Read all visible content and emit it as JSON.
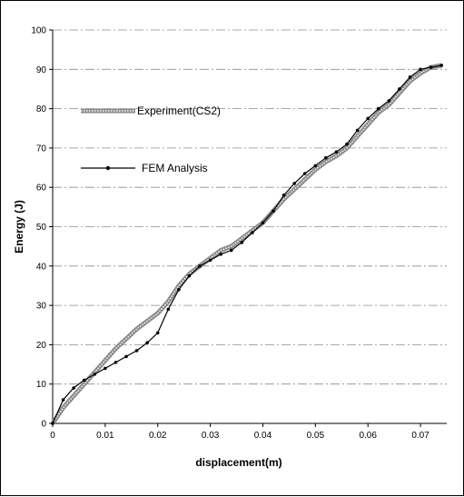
{
  "chart_data": {
    "type": "line",
    "title": "",
    "xlabel": "displacement(m)",
    "ylabel": "Energy (J)",
    "xlim": [
      0,
      0.075
    ],
    "ylim": [
      0,
      100
    ],
    "xticks": [
      0,
      0.01,
      0.02,
      0.03,
      0.04,
      0.05,
      0.06,
      0.07
    ],
    "xtick_labels": [
      "0",
      "0.01",
      "0.02",
      "0.03",
      "0.04",
      "0.05",
      "0.06",
      "0.07"
    ],
    "yticks": [
      0,
      10,
      20,
      30,
      40,
      50,
      60,
      70,
      80,
      90,
      100
    ],
    "ytick_labels": [
      "0",
      "10",
      "20",
      "30",
      "40",
      "50",
      "60",
      "70",
      "80",
      "90",
      "100"
    ],
    "grid": "horizontal dashed",
    "legend_placement": "upper-left inside plot",
    "series": [
      {
        "name": "Experiment(CS2)",
        "color": "#7a7a7a",
        "x": [
          0,
          0.002,
          0.004,
          0.006,
          0.008,
          0.01,
          0.012,
          0.014,
          0.016,
          0.018,
          0.02,
          0.022,
          0.024,
          0.026,
          0.028,
          0.03,
          0.032,
          0.034,
          0.036,
          0.038,
          0.04,
          0.042,
          0.044,
          0.046,
          0.048,
          0.05,
          0.052,
          0.054,
          0.056,
          0.058,
          0.06,
          0.062,
          0.064,
          0.066,
          0.068,
          0.07,
          0.072,
          0.074
        ],
        "y": [
          0,
          4,
          7,
          10,
          13,
          16,
          19,
          21.5,
          24,
          26,
          28,
          31,
          35,
          38,
          40,
          42,
          44,
          45,
          47,
          49,
          51,
          54,
          57,
          59.5,
          62,
          64.5,
          66.5,
          68,
          70,
          73,
          76,
          79,
          81,
          84,
          87,
          89,
          90.5,
          91
        ]
      },
      {
        "name": "FEM Analysis",
        "color": "#000000",
        "x": [
          0,
          0.002,
          0.004,
          0.006,
          0.008,
          0.01,
          0.012,
          0.014,
          0.016,
          0.018,
          0.02,
          0.022,
          0.024,
          0.026,
          0.028,
          0.03,
          0.032,
          0.034,
          0.036,
          0.038,
          0.04,
          0.042,
          0.044,
          0.046,
          0.048,
          0.05,
          0.052,
          0.054,
          0.056,
          0.058,
          0.06,
          0.062,
          0.064,
          0.066,
          0.068,
          0.07,
          0.072,
          0.074
        ],
        "y": [
          0,
          6,
          9,
          11,
          12.5,
          14,
          15.5,
          17,
          18.5,
          20.5,
          23,
          29,
          34,
          37.5,
          40,
          41.5,
          43,
          44,
          46,
          48.5,
          51,
          54,
          58,
          61,
          63.5,
          65.5,
          67.5,
          69,
          71,
          74.5,
          77.5,
          80,
          82,
          85,
          88,
          90,
          90.5,
          91
        ]
      }
    ]
  }
}
